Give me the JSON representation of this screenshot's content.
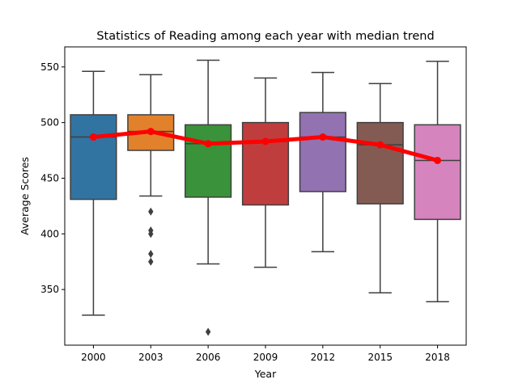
{
  "chart_data": {
    "type": "box",
    "title": "Statistics of Reading among each year with median trend",
    "xlabel": "Year",
    "ylabel": "Average Scores",
    "ylim": [
      300,
      568
    ],
    "yticks": [
      350,
      400,
      450,
      500,
      550
    ],
    "grid": false,
    "legend": "none",
    "categories": [
      "2000",
      "2003",
      "2006",
      "2009",
      "2012",
      "2015",
      "2018"
    ],
    "boxes": [
      {
        "category": "2000",
        "whisker_low": 327,
        "q1": 431,
        "median": 487,
        "q3": 507,
        "whisker_high": 546,
        "outliers": [],
        "color": "#3274a1"
      },
      {
        "category": "2003",
        "whisker_low": 434,
        "q1": 475,
        "median": 492,
        "q3": 507,
        "whisker_high": 543,
        "outliers": [
          420,
          403,
          400,
          382,
          375
        ],
        "color": "#e1812c"
      },
      {
        "category": "2006",
        "whisker_low": 373,
        "q1": 433,
        "median": 481,
        "q3": 498,
        "whisker_high": 556,
        "outliers": [
          312
        ],
        "color": "#3a923a"
      },
      {
        "category": "2009",
        "whisker_low": 370,
        "q1": 426,
        "median": 483,
        "q3": 500,
        "whisker_high": 540,
        "outliers": [],
        "color": "#c03d3e"
      },
      {
        "category": "2012",
        "whisker_low": 384,
        "q1": 438,
        "median": 487,
        "q3": 509,
        "whisker_high": 545,
        "outliers": [],
        "color": "#9372b2"
      },
      {
        "category": "2015",
        "whisker_low": 347,
        "q1": 427,
        "median": 480,
        "q3": 500,
        "whisker_high": 535,
        "outliers": [],
        "color": "#845b53"
      },
      {
        "category": "2018",
        "whisker_low": 339,
        "q1": 413,
        "median": 466,
        "q3": 498,
        "whisker_high": 555,
        "outliers": [],
        "color": "#d684bd"
      }
    ],
    "series": [
      {
        "type": "line",
        "values": [
          487,
          492,
          481,
          483,
          487,
          480,
          466
        ],
        "color": "#ff0000"
      }
    ]
  }
}
